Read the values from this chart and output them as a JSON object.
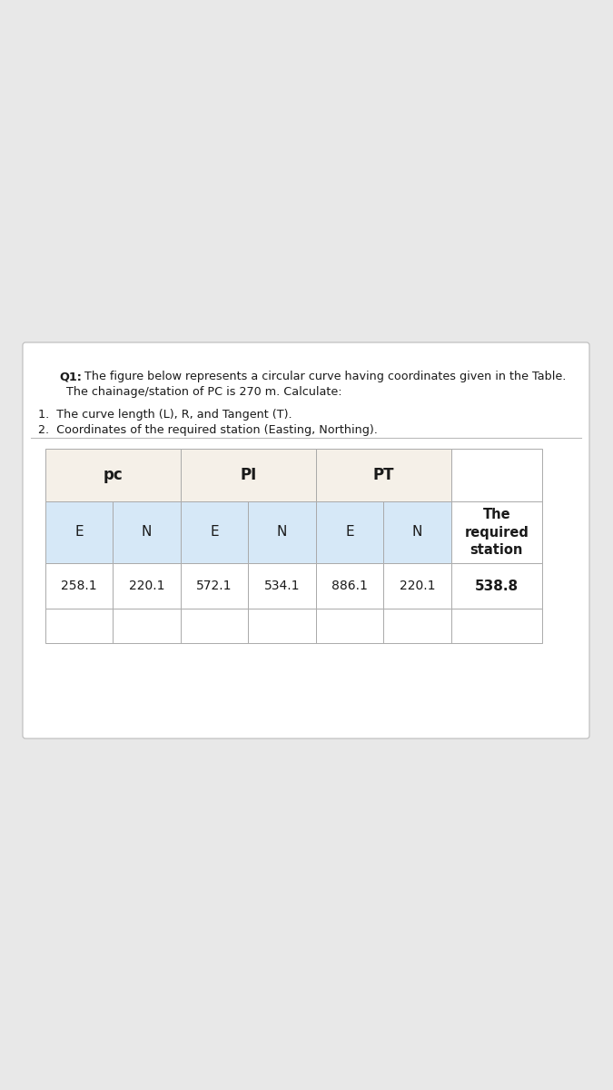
{
  "title_bold": "Q1:",
  "title_text": "  The figure below represents a circular curve having coordinates given in the Table.",
  "title_line2": "  The chainage/station of PC is 270 m. Calculate:",
  "item1": "The curve length (L), R, and Tangent (T).",
  "item2": "Coordinates of the required station (Easting, Northing).",
  "table": {
    "col_widths": [
      1,
      1,
      1,
      1,
      1,
      1,
      1.35
    ],
    "header_bg": "#f5f0e8",
    "subheader_bg": "#d6e8f7",
    "data_bg": "#ffffff",
    "border_color": "#aaaaaa"
  },
  "data_row": [
    "258.1",
    "220.1",
    "572.1",
    "534.1",
    "886.1",
    "220.1",
    "538.8"
  ],
  "bg_color": "#e8e8e8",
  "card_bg": "#ffffff",
  "font_size_title": 9.2,
  "font_size_table": 10
}
